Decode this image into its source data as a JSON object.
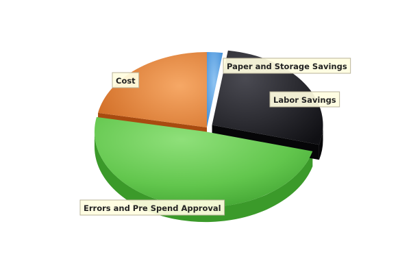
{
  "chart_data": {
    "type": "pie",
    "style": "3d-exploded",
    "slices": [
      {
        "name": "Paper and Storage Savings",
        "value": 2.3,
        "color": "#5ba3e6",
        "exploded": false
      },
      {
        "name": "Labor Savings",
        "value": 26.9,
        "color": "#2e2e33",
        "exploded": true
      },
      {
        "name": "Errors and Pre Spend Approval",
        "value": 48.9,
        "color": "#5cbf48",
        "exploded": true
      },
      {
        "name": "Cost",
        "value": 21.9,
        "color": "#e8873c",
        "exploded": false
      }
    ],
    "legend": "none",
    "labels": "callout boxes"
  }
}
